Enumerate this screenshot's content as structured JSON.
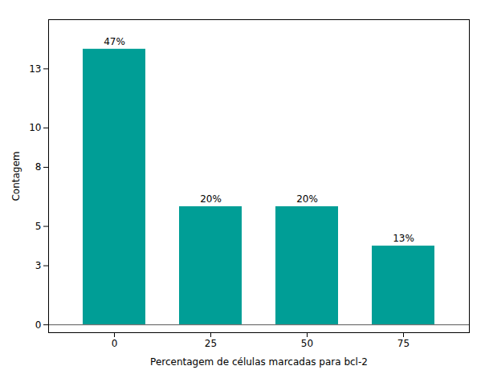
{
  "chart_data": {
    "type": "bar",
    "categories": [
      "0",
      "25",
      "50",
      "75"
    ],
    "values": [
      14,
      6,
      6,
      4
    ],
    "value_labels": [
      "47%",
      "20%",
      "20%",
      "13%"
    ],
    "data_labels": true,
    "color": "#009E96",
    "xlabel": "Percentagem de células marcadas para bcl-2",
    "ylabel": "Contagem",
    "ylim": [
      -0.4,
      15.5
    ],
    "yticks": [
      0,
      3,
      5,
      8,
      10,
      13
    ],
    "grid": false
  }
}
